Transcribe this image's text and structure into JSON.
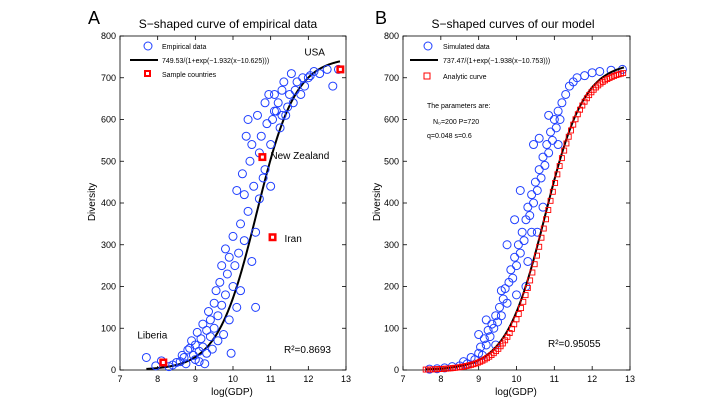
{
  "chart_data": [
    {
      "type": "scatter",
      "panel_label": "A",
      "title": "S−shaped curve of empirical data",
      "xlabel": "log(GDP)",
      "ylabel": "Diversity",
      "xlim": [
        7,
        13
      ],
      "ylim": [
        0,
        800
      ],
      "xticks": [
        "7",
        "8",
        "9",
        "10",
        "11",
        "12",
        "13"
      ],
      "yticks": [
        "0",
        "100",
        "200",
        "300",
        "400",
        "500",
        "600",
        "700",
        "800"
      ],
      "curve": {
        "name": "749.53/(1+exp(−1.932(x−10.625)))",
        "L": 749.53,
        "k": 1.932,
        "x0": 10.625,
        "xrange": [
          7.7,
          12.85
        ]
      },
      "legend": [
        "Empirical data",
        "749.53/(1+exp(−1.932(x−10.625)))",
        "Sample countries"
      ],
      "r2_text": "R²=0.8693",
      "highlights": [
        {
          "label": "USA",
          "x": 12.85,
          "y": 720
        },
        {
          "label": "New Zealand",
          "x": 10.78,
          "y": 510
        },
        {
          "label": "Iran",
          "x": 11.05,
          "y": 318
        },
        {
          "label": "Liberia",
          "x": 8.15,
          "y": 18
        }
      ],
      "points": [
        [
          7.7,
          30
        ],
        [
          7.95,
          10
        ],
        [
          8.1,
          22
        ],
        [
          8.3,
          8
        ],
        [
          8.4,
          12
        ],
        [
          8.5,
          18
        ],
        [
          8.6,
          20
        ],
        [
          8.65,
          35
        ],
        [
          8.7,
          30
        ],
        [
          8.75,
          15
        ],
        [
          8.8,
          48
        ],
        [
          8.85,
          52
        ],
        [
          8.9,
          70
        ],
        [
          8.95,
          35
        ],
        [
          9.0,
          25
        ],
        [
          9.0,
          60
        ],
        [
          9.05,
          90
        ],
        [
          9.1,
          45
        ],
        [
          9.1,
          20
        ],
        [
          9.15,
          75
        ],
        [
          9.2,
          110
        ],
        [
          9.2,
          55
        ],
        [
          9.25,
          15
        ],
        [
          9.3,
          40
        ],
        [
          9.3,
          95
        ],
        [
          9.35,
          140
        ],
        [
          9.4,
          120
        ],
        [
          9.4,
          80
        ],
        [
          9.45,
          50
        ],
        [
          9.5,
          160
        ],
        [
          9.5,
          100
        ],
        [
          9.55,
          190
        ],
        [
          9.6,
          130
        ],
        [
          9.6,
          70
        ],
        [
          9.65,
          210
        ],
        [
          9.7,
          250
        ],
        [
          9.7,
          155
        ],
        [
          9.75,
          85
        ],
        [
          9.8,
          290
        ],
        [
          9.8,
          180
        ],
        [
          9.85,
          230
        ],
        [
          9.9,
          120
        ],
        [
          9.9,
          270
        ],
        [
          9.95,
          40
        ],
        [
          10.0,
          200
        ],
        [
          10.0,
          320
        ],
        [
          10.05,
          250
        ],
        [
          10.1,
          150
        ],
        [
          10.1,
          430
        ],
        [
          10.15,
          280
        ],
        [
          10.2,
          350
        ],
        [
          10.2,
          190
        ],
        [
          10.25,
          470
        ],
        [
          10.3,
          420
        ],
        [
          10.3,
          310
        ],
        [
          10.35,
          560
        ],
        [
          10.4,
          600
        ],
        [
          10.4,
          380
        ],
        [
          10.45,
          500
        ],
        [
          10.5,
          540
        ],
        [
          10.5,
          260
        ],
        [
          10.55,
          440
        ],
        [
          10.6,
          150
        ],
        [
          10.6,
          330
        ],
        [
          10.65,
          610
        ],
        [
          10.7,
          520
        ],
        [
          10.7,
          410
        ],
        [
          10.75,
          560
        ],
        [
          10.8,
          460
        ],
        [
          10.85,
          640
        ],
        [
          10.85,
          480
        ],
        [
          10.9,
          590
        ],
        [
          10.95,
          660
        ],
        [
          11.0,
          440
        ],
        [
          11.0,
          540
        ],
        [
          11.05,
          600
        ],
        [
          11.1,
          620
        ],
        [
          11.1,
          660
        ],
        [
          11.15,
          620
        ],
        [
          11.2,
          640
        ],
        [
          11.25,
          580
        ],
        [
          11.3,
          670
        ],
        [
          11.3,
          610
        ],
        [
          11.35,
          690
        ],
        [
          11.4,
          610
        ],
        [
          11.45,
          630
        ],
        [
          11.5,
          660
        ],
        [
          11.55,
          710
        ],
        [
          11.6,
          640
        ],
        [
          11.65,
          670
        ],
        [
          11.7,
          690
        ],
        [
          11.8,
          660
        ],
        [
          11.85,
          700
        ],
        [
          11.9,
          680
        ],
        [
          12.0,
          700
        ],
        [
          12.05,
          705
        ],
        [
          12.15,
          715
        ],
        [
          12.3,
          710
        ],
        [
          12.5,
          720
        ],
        [
          12.65,
          680
        ],
        [
          12.8,
          720
        ]
      ]
    },
    {
      "type": "scatter",
      "panel_label": "B",
      "title": "S−shaped curves of our model",
      "xlabel": "log(GDP)",
      "ylabel": "Diversity",
      "xlim": [
        7,
        13
      ],
      "ylim": [
        0,
        800
      ],
      "xticks": [
        "7",
        "8",
        "9",
        "10",
        "11",
        "12",
        "13"
      ],
      "yticks": [
        "0",
        "100",
        "200",
        "300",
        "400",
        "500",
        "600",
        "700",
        "800"
      ],
      "curve": {
        "name": "737.47/(1+exp(−1.938(x−10.753)))",
        "L": 737.47,
        "k": 1.938,
        "x0": 10.753,
        "xrange": [
          7.6,
          12.85
        ]
      },
      "analytic": {
        "L": 722,
        "k": 2.05,
        "x0": 10.78,
        "xrange": [
          7.6,
          12.85
        ],
        "step": 0.06
      },
      "legend": [
        "Simulated data",
        "737.47/(1+exp(−1.938(x−10.753)))",
        "Analytic curve"
      ],
      "r2_text": "R²=0.95055",
      "params_title": "The parameters are:",
      "params_line1": "N₀=200     P=720",
      "params_line2": "q=0.048     s=0.6",
      "points": [
        [
          7.7,
          2
        ],
        [
          7.9,
          3
        ],
        [
          8.1,
          5
        ],
        [
          8.3,
          8
        ],
        [
          8.5,
          10
        ],
        [
          8.6,
          20
        ],
        [
          8.7,
          15
        ],
        [
          8.8,
          30
        ],
        [
          8.9,
          25
        ],
        [
          9.0,
          40
        ],
        [
          9.05,
          55
        ],
        [
          9.1,
          35
        ],
        [
          9.15,
          75
        ],
        [
          9.2,
          60
        ],
        [
          9.25,
          95
        ],
        [
          9.3,
          80
        ],
        [
          9.35,
          110
        ],
        [
          9.4,
          100
        ],
        [
          9.45,
          130
        ],
        [
          9.5,
          115
        ],
        [
          9.55,
          150
        ],
        [
          9.6,
          130
        ],
        [
          9.65,
          170
        ],
        [
          9.7,
          195
        ],
        [
          9.75,
          160
        ],
        [
          9.8,
          210
        ],
        [
          9.85,
          240
        ],
        [
          9.9,
          220
        ],
        [
          9.95,
          270
        ],
        [
          10.0,
          250
        ],
        [
          10.05,
          300
        ],
        [
          10.1,
          280
        ],
        [
          10.15,
          330
        ],
        [
          10.2,
          310
        ],
        [
          10.25,
          360
        ],
        [
          10.3,
          390
        ],
        [
          10.35,
          370
        ],
        [
          10.4,
          420
        ],
        [
          10.45,
          400
        ],
        [
          10.5,
          450
        ],
        [
          10.55,
          430
        ],
        [
          10.6,
          480
        ],
        [
          10.65,
          460
        ],
        [
          10.7,
          510
        ],
        [
          10.75,
          490
        ],
        [
          10.8,
          540
        ],
        [
          10.85,
          520
        ],
        [
          10.9,
          570
        ],
        [
          10.95,
          550
        ],
        [
          11.0,
          600
        ],
        [
          11.05,
          580
        ],
        [
          11.1,
          620
        ],
        [
          11.15,
          600
        ],
        [
          11.2,
          640
        ],
        [
          11.3,
          660
        ],
        [
          11.4,
          680
        ],
        [
          11.5,
          690
        ],
        [
          11.6,
          700
        ],
        [
          11.8,
          705
        ],
        [
          12.0,
          712
        ],
        [
          12.2,
          715
        ],
        [
          12.5,
          718
        ],
        [
          12.8,
          720
        ],
        [
          10.45,
          540
        ],
        [
          10.6,
          555
        ],
        [
          10.7,
          390
        ],
        [
          10.25,
          200
        ],
        [
          9.95,
          360
        ],
        [
          9.75,
          300
        ],
        [
          10.1,
          430
        ],
        [
          10.3,
          260
        ],
        [
          10.55,
          330
        ],
        [
          10.85,
          610
        ],
        [
          11.1,
          540
        ],
        [
          9.45,
          60
        ],
        [
          9.6,
          190
        ],
        [
          9.2,
          120
        ],
        [
          9.0,
          85
        ],
        [
          10.0,
          180
        ],
        [
          10.4,
          330
        ]
      ]
    }
  ]
}
